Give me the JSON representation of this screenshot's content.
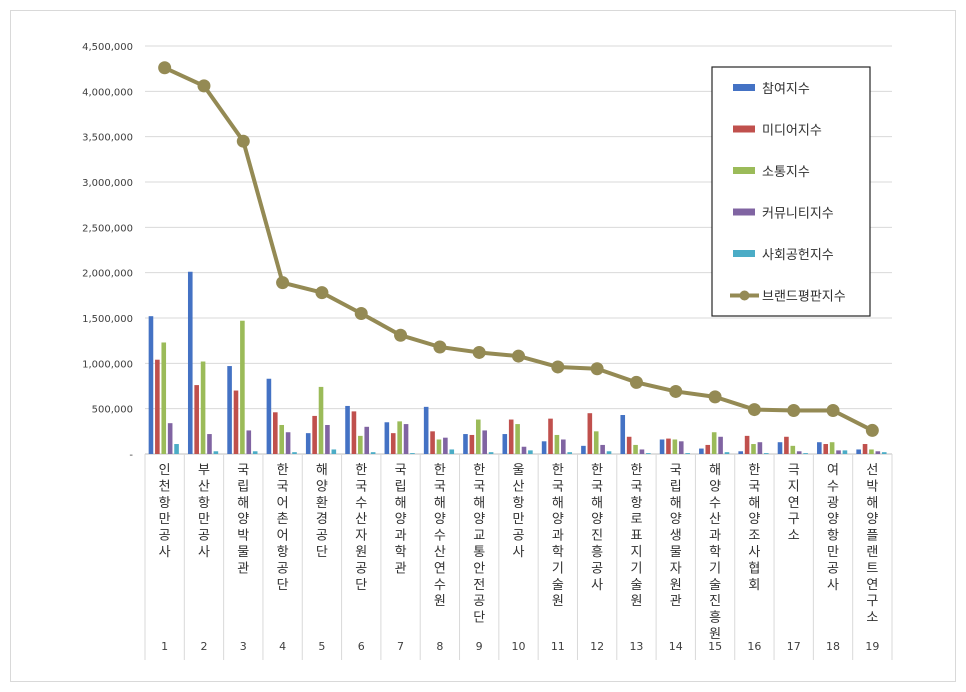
{
  "chart_data": {
    "type": "bar",
    "categories": [
      "인천항만공사",
      "부산항만공사",
      "국립해양박물관",
      "한국어촌어항공단",
      "해양환경공단",
      "한국수산자원공단",
      "국립해양과학관",
      "한국해양수산연수원",
      "한국해양교통안전공단",
      "울산항만공사",
      "한국해양과학기술원",
      "한국해양진흥공사",
      "한국항로표지기술원",
      "국립해양생물자원관",
      "해양수산과학기술진흥원",
      "한국해양조사협회",
      "극지연구소",
      "여수광양항만공사",
      "선박해양플랜트연구소"
    ],
    "ranks": [
      "1",
      "2",
      "3",
      "4",
      "5",
      "6",
      "7",
      "8",
      "9",
      "10",
      "11",
      "12",
      "13",
      "14",
      "15",
      "16",
      "17",
      "18",
      "19"
    ],
    "ylim": [
      0,
      4500000
    ],
    "yticks": [
      "-",
      "500,000",
      "1,000,000",
      "1,500,000",
      "2,000,000",
      "2,500,000",
      "3,000,000",
      "3,500,000",
      "4,000,000",
      "4,500,000"
    ],
    "grid": true,
    "legend_position": "top-right",
    "series": [
      {
        "name": "참여지수",
        "kind": "bar",
        "color": "#4472c4",
        "values": [
          1520000,
          2010000,
          970000,
          830000,
          230000,
          530000,
          350000,
          520000,
          220000,
          220000,
          140000,
          90000,
          430000,
          160000,
          60000,
          30000,
          130000,
          130000,
          50000
        ]
      },
      {
        "name": "미디어지수",
        "kind": "bar",
        "color": "#c0504d",
        "values": [
          1040000,
          760000,
          700000,
          460000,
          420000,
          470000,
          230000,
          250000,
          210000,
          380000,
          390000,
          450000,
          190000,
          170000,
          100000,
          200000,
          190000,
          110000,
          110000
        ]
      },
      {
        "name": "소통지수",
        "kind": "bar",
        "color": "#9bbb59",
        "values": [
          1230000,
          1020000,
          1470000,
          320000,
          740000,
          200000,
          360000,
          160000,
          380000,
          330000,
          210000,
          250000,
          100000,
          160000,
          240000,
          110000,
          90000,
          130000,
          50000
        ]
      },
      {
        "name": "커뮤니티지수",
        "kind": "bar",
        "color": "#8064a2",
        "values": [
          340000,
          220000,
          260000,
          240000,
          320000,
          300000,
          330000,
          180000,
          260000,
          80000,
          160000,
          100000,
          50000,
          140000,
          190000,
          130000,
          30000,
          40000,
          30000
        ]
      },
      {
        "name": "사회공헌지수",
        "kind": "bar",
        "color": "#4bacc6",
        "values": [
          110000,
          30000,
          30000,
          20000,
          50000,
          20000,
          10000,
          50000,
          20000,
          40000,
          20000,
          30000,
          10000,
          10000,
          20000,
          10000,
          10000,
          40000,
          20000
        ]
      },
      {
        "name": "브랜드평판지수",
        "kind": "line",
        "color": "#948a54",
        "values": [
          4260000,
          4060000,
          3450000,
          1890000,
          1780000,
          1550000,
          1310000,
          1180000,
          1120000,
          1080000,
          960000,
          940000,
          790000,
          690000,
          630000,
          490000,
          480000,
          480000,
          260000
        ]
      }
    ]
  }
}
